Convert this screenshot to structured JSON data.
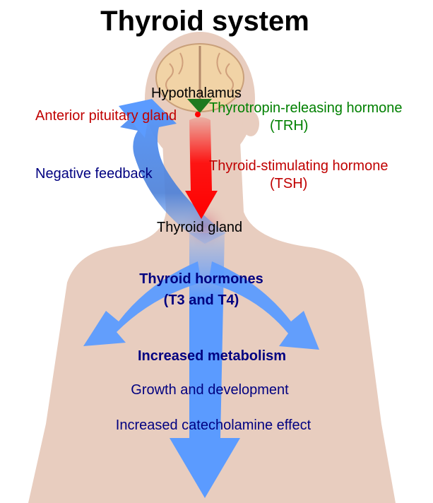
{
  "title": "Thyroid system",
  "labels": {
    "hypothalamus": "Hypothalamus",
    "anterior_pituitary": "Anterior pituitary gland",
    "trh_line1": "Thyrotropin-releasing hormone",
    "trh_line2": "(TRH)",
    "negative_feedback": "Negative feedback",
    "tsh_line1": "Thyroid-stimulating hormone",
    "tsh_line2": "(TSH)",
    "thyroid_gland": "Thyroid gland",
    "hormones_line1": "Thyroid hormones",
    "hormones_line2": "(T3 and T4)",
    "effect1": "Increased metabolism",
    "effect2": "Growth and development",
    "effect3": "Increased catecholamine effect"
  },
  "colors": {
    "body": "#e8cdbf",
    "blue_arrow": "#5b9bff",
    "tsh_arrow": "#ff0000",
    "trh_arrow": "#1e7a1e",
    "navy_text": "#000080",
    "red_text": "#c00000",
    "green_text": "#008000"
  }
}
